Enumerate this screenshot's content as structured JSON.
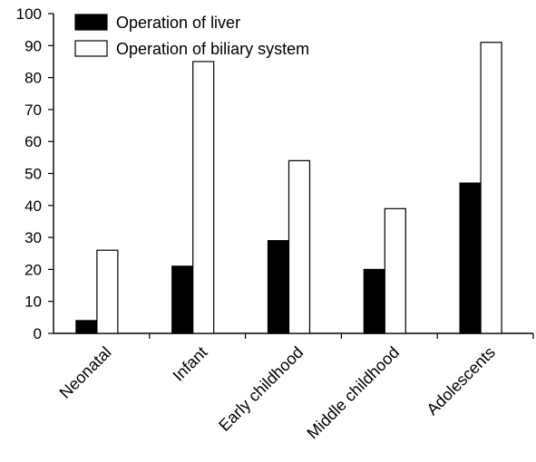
{
  "chart_data": {
    "type": "bar",
    "title": "",
    "xlabel": "",
    "ylabel": "",
    "categories": [
      "Neonatal",
      "Infant",
      "Early childhood",
      "Middle childhood",
      "Adolescents"
    ],
    "series": [
      {
        "name": "Operation of liver",
        "values": [
          4,
          21,
          29,
          20,
          47
        ],
        "color": "#000000"
      },
      {
        "name": "Operation of biliary system",
        "values": [
          26,
          85,
          54,
          39,
          91
        ],
        "color": "#ffffff"
      }
    ],
    "ylim": [
      0,
      100
    ],
    "yticks": [
      0,
      10,
      20,
      30,
      40,
      50,
      60,
      70,
      80,
      90,
      100
    ],
    "grid": false,
    "legend_position": "top-left"
  }
}
